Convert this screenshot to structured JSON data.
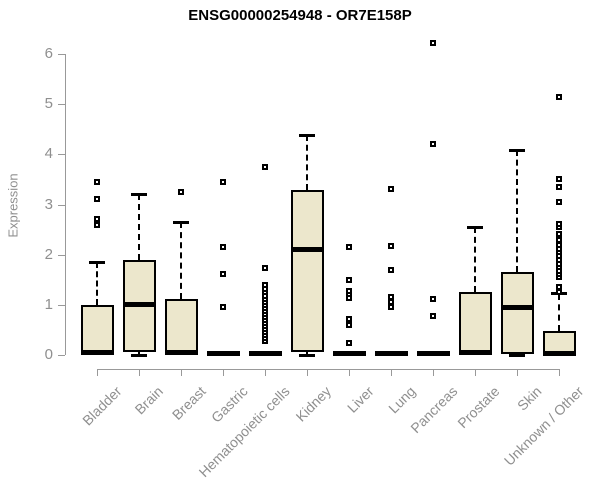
{
  "chart_data": {
    "type": "boxplot",
    "title": "ENSG00000254948 - OR7E158P",
    "ylabel": "Expression",
    "xlabel": "",
    "ylim": [
      0,
      6
    ],
    "yticks": [
      0,
      1,
      2,
      3,
      4,
      5,
      6
    ],
    "grid": false,
    "legend": "none",
    "categories": [
      "Bladder",
      "Brain",
      "Breast",
      "Gastric",
      "Hematopoietic cells",
      "Kidney",
      "Liver",
      "Lung",
      "Pancreas",
      "Prostate",
      "Skin",
      "Unknown / Other"
    ],
    "series": [
      {
        "category": "Bladder",
        "whisker_low": 0,
        "q1": 0,
        "median": 0.05,
        "q3": 1.0,
        "whisker_high": 1.85,
        "outliers": [
          2.6,
          2.72,
          3.1,
          3.45
        ]
      },
      {
        "category": "Brain",
        "whisker_low": 0,
        "q1": 0.05,
        "median": 1.0,
        "q3": 1.9,
        "whisker_high": 3.2,
        "outliers": []
      },
      {
        "category": "Breast",
        "whisker_low": 0,
        "q1": 0,
        "median": 0.05,
        "q3": 1.12,
        "whisker_high": 2.65,
        "outliers": [
          3.25
        ]
      },
      {
        "category": "Gastric",
        "whisker_low": 0,
        "q1": 0,
        "median": 0.02,
        "q3": 0.05,
        "whisker_high": 0.05,
        "outliers": [
          0.95,
          1.62,
          2.15,
          3.45
        ]
      },
      {
        "category": "Hematopoietic cells",
        "whisker_low": 0,
        "q1": 0,
        "median": 0.02,
        "q3": 0.05,
        "whisker_high": 0.05,
        "outliers": [
          0.28,
          0.34,
          0.4,
          0.46,
          0.52,
          0.58,
          0.64,
          0.7,
          0.76,
          0.82,
          0.88,
          0.94,
          1.0,
          1.06,
          1.12,
          1.18,
          1.25,
          1.32,
          1.4,
          1.73,
          3.75
        ]
      },
      {
        "category": "Kidney",
        "whisker_low": 0,
        "q1": 0.05,
        "median": 2.1,
        "q3": 3.28,
        "whisker_high": 4.38,
        "outliers": []
      },
      {
        "category": "Liver",
        "whisker_low": 0,
        "q1": 0,
        "median": 0.02,
        "q3": 0.05,
        "whisker_high": 0.05,
        "outliers": [
          0.24,
          0.6,
          0.72,
          1.13,
          1.22,
          1.28,
          1.5,
          2.15
        ]
      },
      {
        "category": "Lung",
        "whisker_low": 0,
        "q1": 0,
        "median": 0.02,
        "q3": 0.05,
        "whisker_high": 0.05,
        "outliers": [
          0.95,
          1.05,
          1.15,
          1.7,
          2.18,
          3.3
        ]
      },
      {
        "category": "Pancreas",
        "whisker_low": 0,
        "q1": 0,
        "median": 0.02,
        "q3": 0.05,
        "whisker_high": 0.05,
        "outliers": [
          0.78,
          1.12,
          4.2,
          6.22
        ]
      },
      {
        "category": "Prostate",
        "whisker_low": 0,
        "q1": 0,
        "median": 0.05,
        "q3": 1.25,
        "whisker_high": 2.55,
        "outliers": []
      },
      {
        "category": "Skin",
        "whisker_low": 0,
        "q1": 0.02,
        "median": 0.94,
        "q3": 1.65,
        "whisker_high": 4.08,
        "outliers": []
      },
      {
        "category": "Unknown / Other",
        "whisker_low": 0,
        "q1": 0,
        "median": 0.03,
        "q3": 0.48,
        "whisker_high": 1.22,
        "outliers": [
          1.25,
          1.35,
          1.55,
          1.62,
          1.68,
          1.75,
          1.82,
          1.9,
          1.98,
          2.05,
          2.12,
          2.2,
          2.3,
          2.42,
          2.55,
          2.62,
          3.05,
          3.35,
          3.5,
          5.15
        ]
      }
    ],
    "colors": {
      "box_fill": "#ece7cc",
      "box_border": "#000000",
      "median": "#000000",
      "whisker": "#000000",
      "outlier": "#000000",
      "axis": "#999999",
      "tick_label": "#8f8f8f",
      "title": "#000000",
      "background": "#ffffff"
    }
  }
}
